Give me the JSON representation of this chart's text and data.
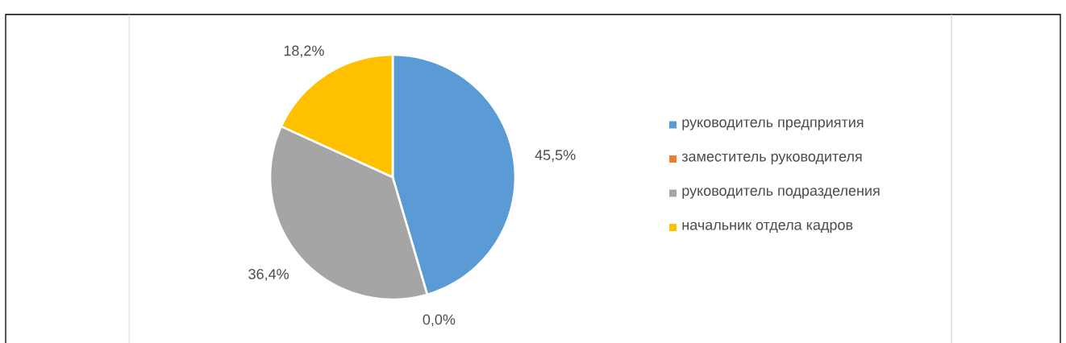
{
  "chart_data": {
    "type": "pie",
    "categories": [
      "руководитель предприятия",
      "заместитель руководителя",
      "руководитель подразделения",
      "начальник отдела кадров"
    ],
    "values": [
      45.5,
      0.0,
      36.4,
      18.2
    ],
    "colors": [
      "#5b9bd5",
      "#ed7d31",
      "#a5a5a5",
      "#ffc000"
    ],
    "value_labels": [
      "45,5%",
      "0,0%",
      "36,4%",
      "18,2%"
    ],
    "legend": "right"
  }
}
